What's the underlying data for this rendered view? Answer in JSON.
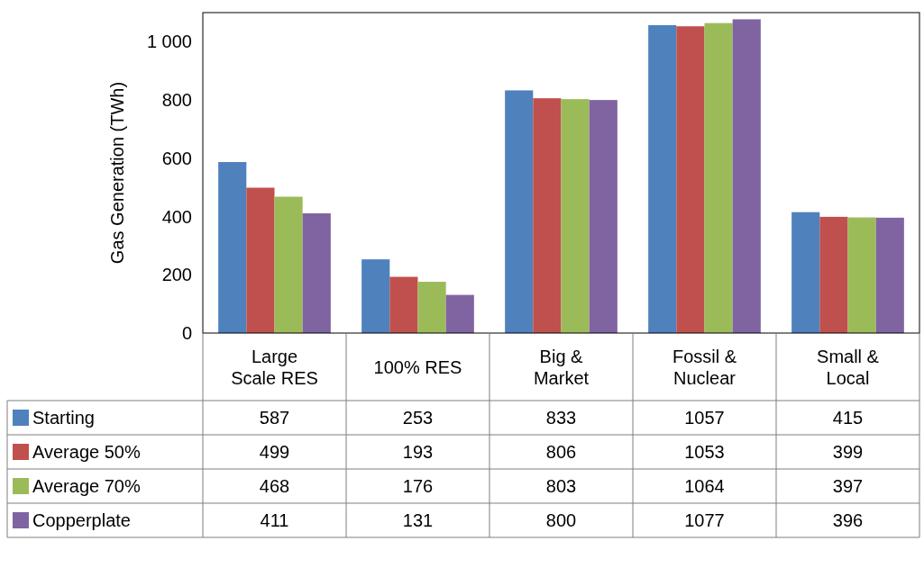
{
  "chart_data": {
    "type": "bar",
    "ylabel": "Gas Generation (TWh)",
    "categories": [
      "Large Scale RES",
      "100% RES",
      "Big & Market",
      "Fossil & Nuclear",
      "Small & Local"
    ],
    "series": [
      {
        "name": "Starting",
        "color": "#4f81bd",
        "values": [
          587,
          253,
          833,
          1057,
          415
        ]
      },
      {
        "name": "Average 50%",
        "color": "#c0504d",
        "values": [
          499,
          193,
          806,
          1053,
          399
        ]
      },
      {
        "name": "Average 70%",
        "color": "#9bbb59",
        "values": [
          468,
          176,
          803,
          1064,
          397
        ]
      },
      {
        "name": "Copperplate",
        "color": "#8064a2",
        "values": [
          411,
          131,
          800,
          1077,
          396
        ]
      }
    ],
    "ylim": [
      0,
      1100
    ],
    "yticks": [
      0,
      200,
      400,
      600,
      800,
      {
        "value": 1000,
        "label": "1 000"
      }
    ],
    "grid": false,
    "legend": "bottom",
    "data_labels": true
  }
}
